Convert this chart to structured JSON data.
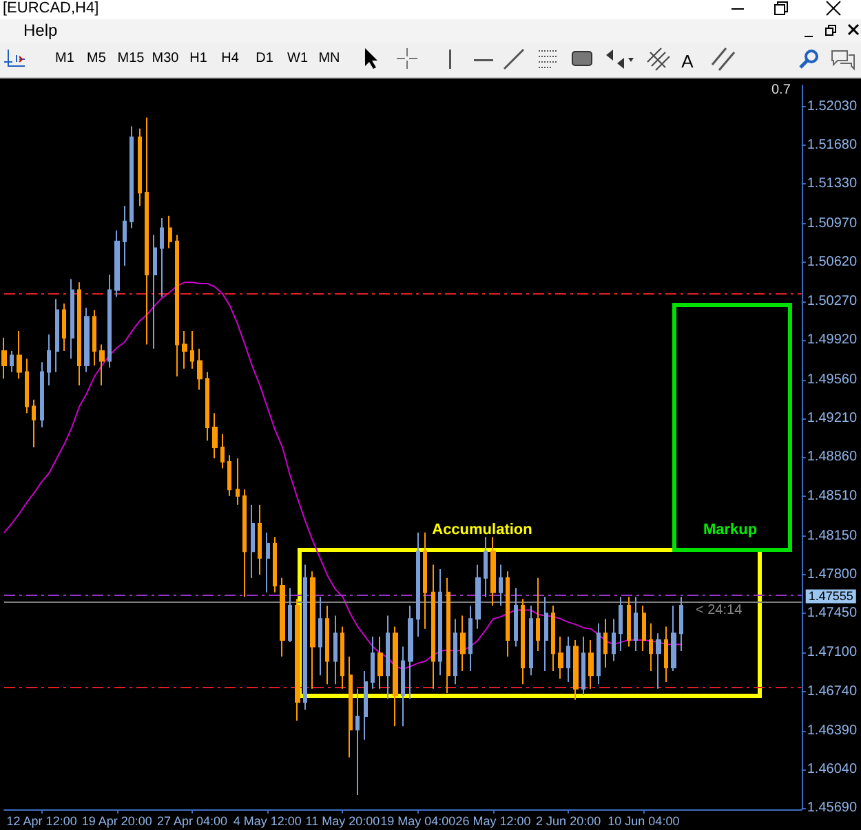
{
  "chart_data": {
    "type": "candlestick",
    "title": "[EURCAD,H4]",
    "categories": [
      null,
      null,
      null,
      null,
      null,
      "12 Apr 12:00",
      null,
      null,
      null,
      null,
      null,
      null,
      null,
      null,
      null,
      "19 Apr 20:00",
      null,
      null,
      null,
      null,
      null,
      null,
      null,
      null,
      null,
      "27 Apr 04:00",
      null,
      null,
      null,
      null,
      null,
      null,
      null,
      null,
      null,
      "4 May 12:00",
      null,
      null,
      null,
      null,
      null,
      null,
      null,
      null,
      null,
      "11 May 20:00",
      null,
      null,
      null,
      null,
      null,
      null,
      null,
      null,
      null,
      "19 May 04:00",
      null,
      null,
      null,
      null,
      null,
      null,
      null,
      null,
      null,
      "26 May 12:00",
      null,
      null,
      null,
      null,
      null,
      null,
      null,
      null,
      null,
      "2 Jun 20:00",
      null,
      null,
      null,
      null,
      null,
      null,
      null,
      null,
      null,
      "10 Jun 04:00",
      null,
      null,
      null,
      null,
      null,
      null,
      null,
      null,
      null,
      null,
      null,
      null,
      null,
      null,
      null,
      null,
      null,
      null,
      null,
      null,
      null
    ],
    "ohlc": [
      [
        1.4982,
        1.4994,
        1.4957,
        1.4969
      ],
      [
        1.4969,
        1.4982,
        1.4963,
        1.4978
      ],
      [
        1.4978,
        1.5,
        1.4957,
        1.4963
      ],
      [
        1.4963,
        1.4975,
        1.4926,
        1.4932
      ],
      [
        1.4932,
        1.4938,
        1.4895,
        1.492
      ],
      [
        1.492,
        1.4972,
        1.4913,
        1.4963
      ],
      [
        1.4963,
        1.4997,
        1.4951,
        1.4982
      ],
      [
        1.4982,
        1.5029,
        1.4963,
        1.5019
      ],
      [
        1.5019,
        1.5025,
        1.4982,
        1.4994
      ],
      [
        1.4994,
        1.5047,
        1.4975,
        1.5037
      ],
      [
        1.5037,
        1.5044,
        1.4951,
        1.4969
      ],
      [
        1.4969,
        1.5021,
        1.4963,
        1.5013
      ],
      [
        1.5013,
        1.5019,
        1.4969,
        1.4982
      ],
      [
        1.4982,
        1.4988,
        1.4951,
        1.4973
      ],
      [
        1.4973,
        1.5051,
        1.4967,
        1.5037
      ],
      [
        1.5037,
        1.5091,
        1.5031,
        1.5081
      ],
      [
        1.5081,
        1.5113,
        1.5059,
        1.5099
      ],
      [
        1.5099,
        1.5185,
        1.5093,
        1.5175
      ],
      [
        1.5175,
        1.5183,
        1.5113,
        1.5125
      ],
      [
        1.5125,
        1.5193,
        1.4988,
        1.5051
      ],
      [
        1.5051,
        1.5087,
        1.4984,
        1.5075
      ],
      [
        1.5075,
        1.5102,
        1.5031,
        1.5093
      ],
      [
        1.5093,
        1.5104,
        1.5075,
        1.5081
      ],
      [
        1.5081,
        1.5087,
        1.4959,
        1.4988
      ],
      [
        1.4988,
        1.5,
        1.4966,
        1.4982
      ],
      [
        1.4982,
        1.5,
        1.4966,
        1.4973
      ],
      [
        1.4973,
        1.4984,
        1.4947,
        1.4957
      ],
      [
        1.4957,
        1.4963,
        1.4901,
        1.4913
      ],
      [
        1.4913,
        1.4926,
        1.4885,
        1.4895
      ],
      [
        1.4895,
        1.4907,
        1.4876,
        1.4882
      ],
      [
        1.4882,
        1.4888,
        1.4851,
        1.4857
      ],
      [
        1.4857,
        1.4885,
        1.4843,
        1.4851
      ],
      [
        1.4851,
        1.4857,
        1.476,
        1.4801
      ],
      [
        1.4801,
        1.4843,
        1.4777,
        1.4826
      ],
      [
        1.4826,
        1.4843,
        1.478,
        1.4795
      ],
      [
        1.4795,
        1.4818,
        1.4764,
        1.4808
      ],
      [
        1.4808,
        1.4814,
        1.4764,
        1.477
      ],
      [
        1.477,
        1.4777,
        1.4706,
        1.4721
      ],
      [
        1.4721,
        1.4768,
        1.4719,
        1.4752
      ],
      [
        1.4752,
        1.4758,
        1.4648,
        1.4665
      ],
      [
        1.4665,
        1.4789,
        1.4658,
        1.4777
      ],
      [
        1.4777,
        1.4783,
        1.4677,
        1.4715
      ],
      [
        1.4715,
        1.476,
        1.4689,
        1.474
      ],
      [
        1.474,
        1.4752,
        1.4681,
        1.4702
      ],
      [
        1.4702,
        1.4743,
        1.4681,
        1.4727
      ],
      [
        1.4727,
        1.4733,
        1.4677,
        1.4689
      ],
      [
        1.4689,
        1.4706,
        1.4615,
        1.464
      ],
      [
        1.464,
        1.4677,
        1.4581,
        1.4652
      ],
      [
        1.4652,
        1.4693,
        1.4631,
        1.4683
      ],
      [
        1.4683,
        1.4724,
        1.4677,
        1.4709
      ],
      [
        1.4709,
        1.4724,
        1.4677,
        1.4689
      ],
      [
        1.4689,
        1.4743,
        1.4668,
        1.4727
      ],
      [
        1.4727,
        1.4733,
        1.4643,
        1.4671
      ],
      [
        1.4671,
        1.4715,
        1.4643,
        1.4702
      ],
      [
        1.4702,
        1.4752,
        1.4668,
        1.474
      ],
      [
        1.474,
        1.4818,
        1.4724,
        1.4801
      ],
      [
        1.4801,
        1.4818,
        1.4731,
        1.4764
      ],
      [
        1.4764,
        1.4789,
        1.4677,
        1.4702
      ],
      [
        1.4702,
        1.4785,
        1.4689,
        1.4764
      ],
      [
        1.4764,
        1.4777,
        1.4673,
        1.4689
      ],
      [
        1.4689,
        1.474,
        1.4681,
        1.4727
      ],
      [
        1.4727,
        1.4743,
        1.4693,
        1.4709
      ],
      [
        1.4709,
        1.4752,
        1.4693,
        1.474
      ],
      [
        1.474,
        1.4789,
        1.4731,
        1.4777
      ],
      [
        1.4777,
        1.4814,
        1.476,
        1.4801
      ],
      [
        1.4801,
        1.4814,
        1.4752,
        1.4764
      ],
      [
        1.4764,
        1.4789,
        1.4752,
        1.4777
      ],
      [
        1.4777,
        1.4783,
        1.4706,
        1.4721
      ],
      [
        1.4721,
        1.4768,
        1.4715,
        1.4752
      ],
      [
        1.4752,
        1.4758,
        1.4681,
        1.4696
      ],
      [
        1.4696,
        1.4752,
        1.4689,
        1.474
      ],
      [
        1.474,
        1.4777,
        1.4711,
        1.4721
      ],
      [
        1.4721,
        1.476,
        1.4693,
        1.4745
      ],
      [
        1.4745,
        1.4752,
        1.4693,
        1.4709
      ],
      [
        1.4709,
        1.4724,
        1.4686,
        1.4696
      ],
      [
        1.4696,
        1.4724,
        1.4683,
        1.4715
      ],
      [
        1.4715,
        1.4721,
        1.4667,
        1.4677
      ],
      [
        1.4677,
        1.4724,
        1.4671,
        1.4709
      ],
      [
        1.4709,
        1.4721,
        1.4677,
        1.4689
      ],
      [
        1.4689,
        1.4736,
        1.4681,
        1.4727
      ],
      [
        1.4727,
        1.474,
        1.4696,
        1.4709
      ],
      [
        1.4709,
        1.474,
        1.4702,
        1.4727
      ],
      [
        1.4727,
        1.476,
        1.4711,
        1.4752
      ],
      [
        1.4752,
        1.476,
        1.4715,
        1.4721
      ],
      [
        1.4721,
        1.476,
        1.4711,
        1.4745
      ],
      [
        1.4745,
        1.4752,
        1.4711,
        1.4721
      ],
      [
        1.4721,
        1.4736,
        1.4693,
        1.4709
      ],
      [
        1.4709,
        1.4727,
        1.4677,
        1.4721
      ],
      [
        1.4721,
        1.4733,
        1.4683,
        1.4696
      ],
      [
        1.4696,
        1.4752,
        1.4693,
        1.4727
      ],
      [
        1.4727,
        1.476,
        1.4711,
        1.4752
      ],
      null,
      null,
      null,
      null,
      null,
      null,
      null,
      null,
      null,
      null,
      null,
      null,
      null,
      null,
      null,
      null
    ],
    "series": [
      {
        "type": "line",
        "color": "#cc00cc",
        "values": [
          1.4818,
          1.4826,
          1.4835,
          1.4845,
          1.4854,
          1.4864,
          1.4872,
          1.4885,
          1.4898,
          1.4913,
          1.4932,
          1.4944,
          1.4959,
          1.4969,
          1.4978,
          1.4985,
          1.499,
          1.5,
          1.5009,
          1.5015,
          1.5023,
          1.503,
          1.5035,
          1.5041,
          1.5044,
          1.5044,
          1.5043,
          1.5043,
          1.504,
          1.5034,
          1.5023,
          1.5007,
          1.4988,
          1.4968,
          1.4951,
          1.4931,
          1.4911,
          1.4895,
          1.487,
          1.4849,
          1.4829,
          1.4811,
          1.4795,
          1.4779,
          1.4767,
          1.476,
          1.4745,
          1.4733,
          1.4724,
          1.4715,
          1.4709,
          1.4705,
          1.4697,
          1.4695,
          1.4697,
          1.47,
          1.4702,
          1.4707,
          1.4711,
          1.4712,
          1.4711,
          1.4712,
          1.4715,
          1.4721,
          1.473,
          1.474,
          1.4742,
          1.4745,
          1.4748,
          1.4748,
          1.4748,
          1.4744,
          1.4743,
          1.4742,
          1.474,
          1.4737,
          1.4735,
          1.4732,
          1.4731,
          1.4726,
          1.472,
          1.4717,
          1.4719,
          1.4721,
          1.4721,
          1.4721,
          1.472,
          1.4719,
          1.4717,
          1.4717,
          1.4717,
          null,
          null,
          null,
          null,
          null,
          null,
          null,
          null,
          null,
          null,
          null,
          null,
          null,
          null,
          null,
          null
        ]
      }
    ],
    "ylim": [
      1.4568,
      1.5222
    ],
    "yticks": [
      {
        "value": 1.5203,
        "label": "1.52030"
      },
      {
        "value": 1.5168,
        "label": "1.51680"
      },
      {
        "value": 1.5133,
        "label": "1.51330"
      },
      {
        "value": 1.5097,
        "label": "1.50970"
      },
      {
        "value": 1.5062,
        "label": "1.50620"
      },
      {
        "value": 1.5027,
        "label": "1.50270"
      },
      {
        "value": 1.4992,
        "label": "1.49920"
      },
      {
        "value": 1.4956,
        "label": "1.49560"
      },
      {
        "value": 1.4921,
        "label": "1.49210"
      },
      {
        "value": 1.4886,
        "label": "1.48860"
      },
      {
        "value": 1.4851,
        "label": "1.48510"
      },
      {
        "value": 1.4815,
        "label": "1.48150"
      },
      {
        "value": 1.478,
        "label": "1.47800"
      },
      {
        "value": 1.4745,
        "label": "1.47450"
      },
      {
        "value": 1.471,
        "label": "1.47100"
      },
      {
        "value": 1.4674,
        "label": "1.46740"
      },
      {
        "value": 1.4639,
        "label": "1.46390"
      },
      {
        "value": 1.4604,
        "label": "1.46040"
      },
      {
        "value": 1.4569,
        "label": "1.45690"
      }
    ],
    "ref_lines": [
      {
        "axis": "y",
        "value": 1.5034,
        "color": "#e02020",
        "line_style": "dashed"
      },
      {
        "axis": "y",
        "value": 1.4762,
        "color": "#9933cc",
        "line_style": "dashed"
      },
      {
        "axis": "y",
        "value": 1.47555,
        "label": "1.47555",
        "color": "#808080",
        "line_style": "solid"
      },
      {
        "axis": "y",
        "value": 1.4678,
        "color": "#e02020",
        "line_style": "dashed"
      }
    ],
    "annotations": [
      "Help",
      "M1",
      "M5",
      "M15",
      "M30",
      "H1",
      "H4",
      "D1",
      "W1",
      "MN",
      "A",
      "Accumulation",
      "Markup",
      "< 24:14",
      "0.7"
    ],
    "grid": false
  }
}
